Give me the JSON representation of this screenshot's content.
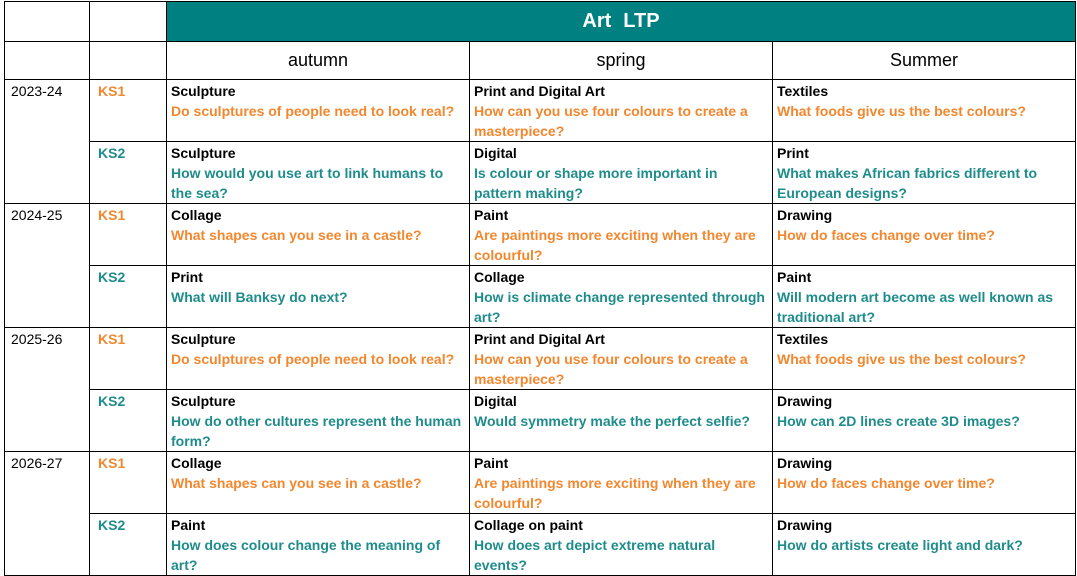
{
  "title": {
    "subject": "Art",
    "code": "LTP"
  },
  "seasons": [
    "autumn",
    "spring",
    "Summer"
  ],
  "years": [
    {
      "year": "2023-24",
      "rows": [
        {
          "stage": "KS1",
          "cells": [
            {
              "topic": "Sculpture",
              "question": "Do sculptures of people need to look real?"
            },
            {
              "topic": "Print and Digital Art",
              "question": "How can you use four colours to create a masterpiece?"
            },
            {
              "topic": "Textiles",
              "question": "What foods give us the best colours?"
            }
          ]
        },
        {
          "stage": "KS2",
          "cells": [
            {
              "topic": "Sculpture",
              "question": "How would you use art to link humans to the sea?"
            },
            {
              "topic": "Digital",
              "question": "Is colour or shape more important in pattern making?"
            },
            {
              "topic": "Print",
              "question": "What makes African fabrics different to European designs?"
            }
          ]
        }
      ]
    },
    {
      "year": "2024-25",
      "rows": [
        {
          "stage": "KS1",
          "cells": [
            {
              "topic": "Collage",
              "question": "What shapes can you see in a castle?"
            },
            {
              "topic": "Paint",
              "question": "Are paintings more exciting when they are colourful?"
            },
            {
              "topic": "Drawing",
              "question": "How do faces change over time?"
            }
          ]
        },
        {
          "stage": "KS2",
          "cells": [
            {
              "topic": "Print",
              "question": "What will Banksy do next?"
            },
            {
              "topic": "Collage",
              "question": "How is climate change represented through art?"
            },
            {
              "topic": "Paint",
              "question": "Will modern art become as well known as traditional art?"
            }
          ]
        }
      ]
    },
    {
      "year": "2025-26",
      "rows": [
        {
          "stage": "KS1",
          "cells": [
            {
              "topic": "Sculpture",
              "question": "Do sculptures of people need to look real?"
            },
            {
              "topic": "Print and Digital Art",
              "question": "How can you use four colours to create a masterpiece?"
            },
            {
              "topic": "Textiles",
              "question": "What foods give us the best colours?"
            }
          ]
        },
        {
          "stage": "KS2",
          "cells": [
            {
              "topic": "Sculpture",
              "question": "How do other cultures represent the human form?"
            },
            {
              "topic": "Digital",
              "question": "Would symmetry make the perfect selfie?"
            },
            {
              "topic": "Drawing",
              "question": "How can 2D lines create 3D images?"
            }
          ]
        }
      ]
    },
    {
      "year": "2026-27",
      "rows": [
        {
          "stage": "KS1",
          "cells": [
            {
              "topic": "Collage",
              "question": "What shapes can you see in a castle?"
            },
            {
              "topic": "Paint",
              "question": "Are paintings more exciting when they are colourful?"
            },
            {
              "topic": "Drawing",
              "question": "How do faces change over time?"
            }
          ]
        },
        {
          "stage": "KS2",
          "cells": [
            {
              "topic": "Paint",
              "question": "How does colour change the meaning of art?"
            },
            {
              "topic": "Collage on paint",
              "question": "How does art depict extreme natural events?"
            },
            {
              "topic": "Drawing",
              "question": "How do artists create light and dark?"
            }
          ]
        }
      ]
    }
  ],
  "colors": {
    "header": "#008080",
    "ks1": "#f2872e",
    "ks2": "#1f8c8c"
  }
}
